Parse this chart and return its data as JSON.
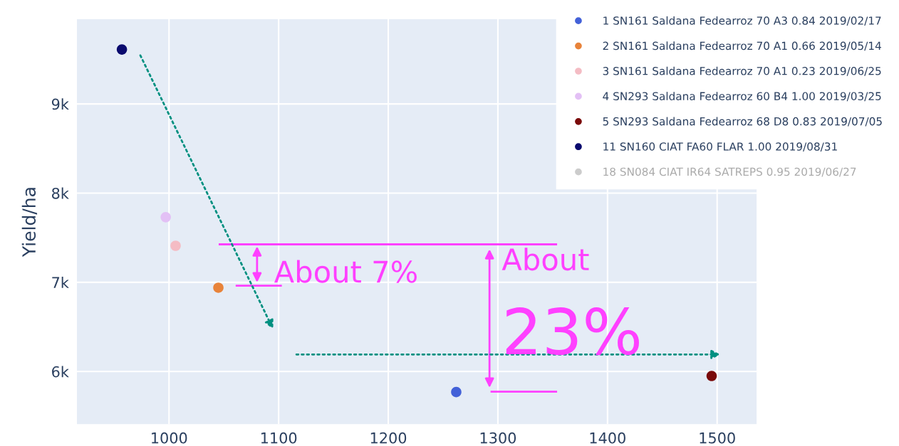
{
  "chart_data": {
    "type": "scatter",
    "ylabel": "Yield/ha",
    "xlim": [
      916,
      1536
    ],
    "ylim": [
      5410,
      9950
    ],
    "xticks": [
      1000,
      1100,
      1200,
      1300,
      1400,
      1500
    ],
    "yticks": [
      {
        "value": 6000,
        "label": "6k"
      },
      {
        "value": 7000,
        "label": "7k"
      },
      {
        "value": 8000,
        "label": "8k"
      },
      {
        "value": 9000,
        "label": "9k"
      }
    ],
    "grid": true,
    "legend": "top right",
    "marker": "circle",
    "series": [
      {
        "name": "1 SN161 Saldana Fedearroz 70 A3 0.84 2019/02/17",
        "color": "#4361d8",
        "x": [
          1262
        ],
        "values": [
          5770
        ]
      },
      {
        "name": "2 SN161 Saldana Fedearroz 70 A1 0.66 2019/05/14",
        "color": "#e8833a",
        "x": [
          1045
        ],
        "values": [
          6940
        ]
      },
      {
        "name": "3 SN161 Saldana Fedearroz 70 A1 0.23 2019/06/25",
        "color": "#f4bcc4",
        "x": [
          1006
        ],
        "values": [
          7410
        ]
      },
      {
        "name": "4 SN293 Saldana Fedearroz 60 B4 1.00 2019/03/25",
        "color": "#e3c0f5",
        "x": [
          997
        ],
        "values": [
          7730
        ]
      },
      {
        "name": "5 SN293 Saldana Fedearroz 68 D8 0.83 2019/07/05",
        "color": "#7a0a0a",
        "x": [
          1495
        ],
        "values": [
          5950
        ]
      },
      {
        "name": "11 SN160 CIAT FA60 FLAR 1.00 2019/08/31",
        "color": "#0a0a6e",
        "x": [
          957
        ],
        "values": [
          9610
        ]
      },
      {
        "name": "18 SN084 CIAT IR64 SATREPS 0.95 2019/06/27",
        "color": "#cccccc",
        "x": [
          null
        ],
        "values": [
          null
        ]
      }
    ],
    "annotations": [
      "About 7%",
      "About 23%"
    ]
  }
}
